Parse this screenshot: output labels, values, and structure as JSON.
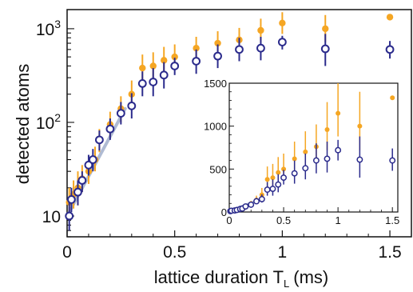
{
  "chart_data": [
    {
      "type": "scatter",
      "xlabel_main": "lattice duration T",
      "xlabel_sub": "L",
      "xlabel_unit": "(ms)",
      "ylabel": "detected atoms",
      "yscale": "log",
      "xlim": [
        0,
        1.6
      ],
      "ylim": [
        6,
        1600
      ],
      "xticks": [
        {
          "value": 0,
          "label": "0"
        },
        {
          "value": 0.5,
          "label": "0.5"
        },
        {
          "value": 1,
          "label": "1"
        },
        {
          "value": 1.5,
          "label": "1.5"
        }
      ],
      "ytick_labels": [
        {
          "value": 10,
          "base": "10",
          "exp": ""
        },
        {
          "value": 100,
          "base": "10",
          "exp": "2"
        },
        {
          "value": 1000,
          "base": "10",
          "exp": "3"
        }
      ],
      "grid": false,
      "legend": "none",
      "colors": {
        "orange": "#F5A623",
        "blue": "#2B2B8C",
        "fit": "#A7B4CF"
      },
      "series": [
        {
          "marker": "filled-circle",
          "color": "#F5A623",
          "points": [
            {
              "x": 0.01,
              "y": 14,
              "lo": 9,
              "hi": 20
            },
            {
              "x": 0.03,
              "y": 17,
              "lo": 12,
              "hi": 24
            },
            {
              "x": 0.05,
              "y": 20,
              "lo": 13,
              "hi": 30
            },
            {
              "x": 0.07,
              "y": 25,
              "lo": 18,
              "hi": 35
            },
            {
              "x": 0.1,
              "y": 30,
              "lo": 22,
              "hi": 40
            },
            {
              "x": 0.13,
              "y": 40,
              "lo": 30,
              "hi": 55
            },
            {
              "x": 0.15,
              "y": 65,
              "lo": 48,
              "hi": 85
            },
            {
              "x": 0.2,
              "y": 95,
              "lo": 70,
              "hi": 130
            },
            {
              "x": 0.25,
              "y": 140,
              "lo": 100,
              "hi": 190
            },
            {
              "x": 0.3,
              "y": 200,
              "lo": 150,
              "hi": 280
            },
            {
              "x": 0.35,
              "y": 380,
              "lo": 270,
              "hi": 530
            },
            {
              "x": 0.4,
              "y": 400,
              "lo": 300,
              "hi": 560
            },
            {
              "x": 0.45,
              "y": 460,
              "lo": 340,
              "hi": 640
            },
            {
              "x": 0.5,
              "y": 500,
              "lo": 380,
              "hi": 680
            },
            {
              "x": 0.6,
              "y": 620,
              "lo": 470,
              "hi": 820
            },
            {
              "x": 0.7,
              "y": 700,
              "lo": 520,
              "hi": 940
            },
            {
              "x": 0.8,
              "y": 760,
              "lo": 560,
              "hi": 1020
            },
            {
              "x": 0.9,
              "y": 960,
              "lo": 720,
              "hi": 1280
            },
            {
              "x": 1.0,
              "y": 1150,
              "lo": 880,
              "hi": 1500
            },
            {
              "x": 1.2,
              "y": 1000,
              "lo": 720,
              "hi": 1400
            },
            {
              "x": 1.5,
              "y": 1330
            }
          ]
        },
        {
          "marker": "open-circle",
          "color": "#2B2B8C",
          "points": [
            {
              "x": 0.01,
              "y": 10,
              "lo": 7,
              "hi": 14
            },
            {
              "x": 0.02,
              "y": 15,
              "lo": 11,
              "hi": 20
            },
            {
              "x": 0.05,
              "y": 18,
              "lo": 13,
              "hi": 24
            },
            {
              "x": 0.07,
              "y": 24,
              "lo": 18,
              "hi": 30
            },
            {
              "x": 0.1,
              "y": 35,
              "lo": 27,
              "hi": 45
            },
            {
              "x": 0.12,
              "y": 40,
              "lo": 30,
              "hi": 52
            },
            {
              "x": 0.15,
              "y": 65,
              "lo": 50,
              "hi": 82
            },
            {
              "x": 0.2,
              "y": 85,
              "lo": 65,
              "hi": 110
            },
            {
              "x": 0.25,
              "y": 125,
              "lo": 95,
              "hi": 165
            },
            {
              "x": 0.3,
              "y": 150,
              "lo": 110,
              "hi": 205
            },
            {
              "x": 0.35,
              "y": 260,
              "lo": 190,
              "hi": 350
            },
            {
              "x": 0.4,
              "y": 270,
              "lo": 190,
              "hi": 380
            },
            {
              "x": 0.45,
              "y": 320,
              "lo": 230,
              "hi": 440
            },
            {
              "x": 0.5,
              "y": 400,
              "lo": 320,
              "hi": 490
            },
            {
              "x": 0.6,
              "y": 450,
              "lo": 330,
              "hi": 600
            },
            {
              "x": 0.7,
              "y": 510,
              "lo": 380,
              "hi": 680
            },
            {
              "x": 0.8,
              "y": 600,
              "lo": 450,
              "hi": 800
            },
            {
              "x": 0.9,
              "y": 620,
              "lo": 460,
              "hi": 820
            },
            {
              "x": 1.0,
              "y": 720,
              "lo": 600,
              "hi": 840
            },
            {
              "x": 1.2,
              "y": 610,
              "lo": 400,
              "hi": 880
            },
            {
              "x": 1.5,
              "y": 600,
              "lo": 480,
              "hi": 740
            }
          ]
        }
      ],
      "fit_line": {
        "x": [
          0.0,
          0.27
        ],
        "y": [
          10,
          140
        ]
      }
    },
    {
      "type": "scatter",
      "role": "inset",
      "yscale": "linear",
      "xlim": [
        0,
        1.55
      ],
      "ylim": [
        0,
        1500
      ],
      "xticks": [
        {
          "value": 0,
          "label": "0"
        },
        {
          "value": 0.5,
          "label": "0.5"
        },
        {
          "value": 1,
          "label": "1"
        },
        {
          "value": 1.5,
          "label": "1.5"
        }
      ],
      "yticks": [
        {
          "value": 0,
          "label": "0"
        },
        {
          "value": 500,
          "label": "500"
        },
        {
          "value": 1000,
          "label": "1000"
        },
        {
          "value": 1500,
          "label": "1500"
        }
      ],
      "series_source": "same as main panel"
    }
  ]
}
